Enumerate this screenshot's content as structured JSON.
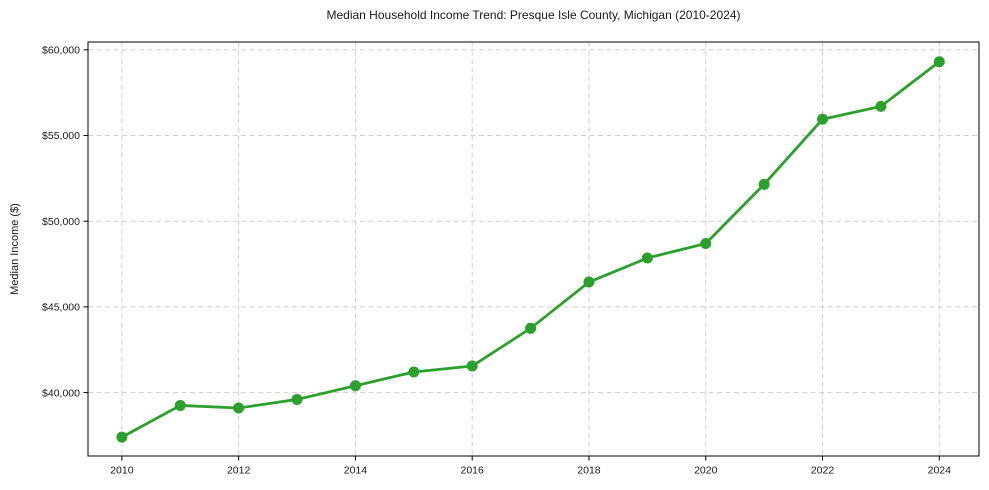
{
  "chart_data": {
    "type": "line",
    "title": "Median Household Income Trend: Presque Isle County, Michigan (2010-2024)",
    "xlabel": "",
    "ylabel": "Median Income ($)",
    "x": [
      2010,
      2011,
      2012,
      2013,
      2014,
      2015,
      2016,
      2017,
      2018,
      2019,
      2020,
      2021,
      2022,
      2023,
      2024
    ],
    "series": [
      {
        "name": "Median Household Income",
        "values": [
          37400,
          39250,
          39100,
          39600,
          40400,
          41200,
          41550,
          43750,
          46450,
          47850,
          48700,
          52150,
          55950,
          56700,
          59300
        ],
        "color": "#2ca02c"
      }
    ],
    "xticks": [
      2010,
      2012,
      2014,
      2016,
      2018,
      2020,
      2022,
      2024
    ],
    "xtick_labels": [
      "2010",
      "2012",
      "2014",
      "2016",
      "2018",
      "2020",
      "2022",
      "2024"
    ],
    "yticks": [
      40000,
      45000,
      50000,
      55000,
      60000
    ],
    "ytick_labels": [
      "$40,000",
      "$45,000",
      "$50,000",
      "$55,000",
      "$60,000"
    ],
    "xlim": [
      2009.42,
      2024.68
    ],
    "ylim": [
      36300,
      60455
    ],
    "grid": true,
    "grid_style": "dashed",
    "grid_color": "#cfcfcf",
    "axis_color": "#000000",
    "text_color": "#1a1a1a",
    "legend": "none",
    "marker": "circle"
  }
}
